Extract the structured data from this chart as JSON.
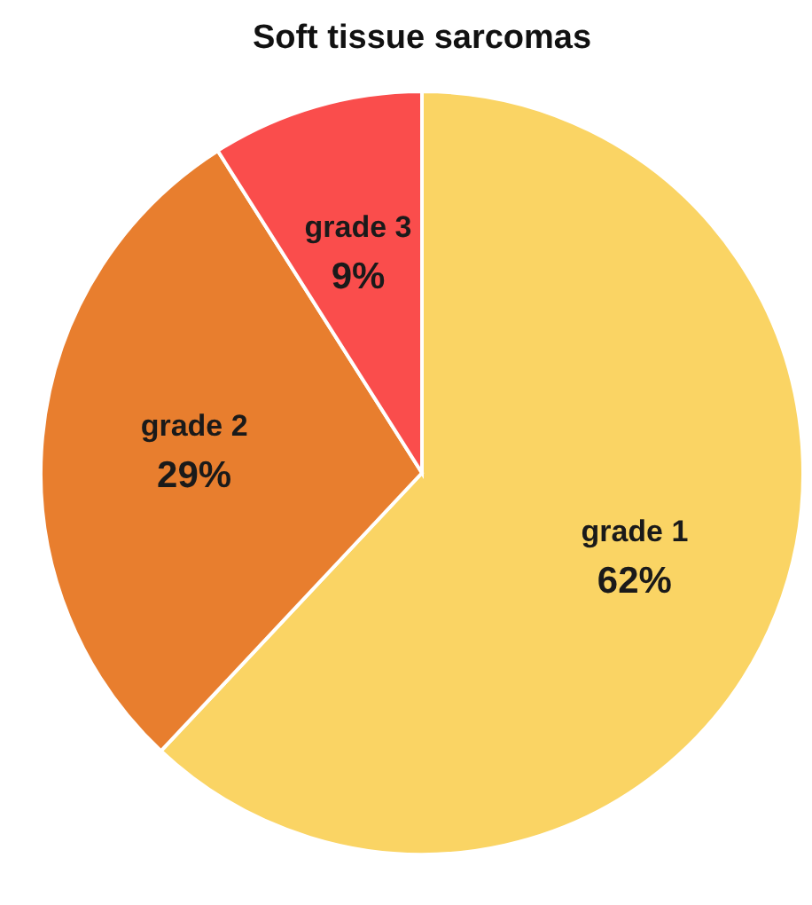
{
  "chart_data": {
    "type": "pie",
    "title": "Soft tissue sarcomas",
    "categories": [
      "grade 1",
      "grade 2",
      "grade 3"
    ],
    "values": [
      62,
      29,
      9
    ],
    "value_labels": [
      "62%",
      "29%",
      "9%"
    ],
    "colors": [
      "#fad464",
      "#e87e2e",
      "#fa4d4c"
    ]
  }
}
